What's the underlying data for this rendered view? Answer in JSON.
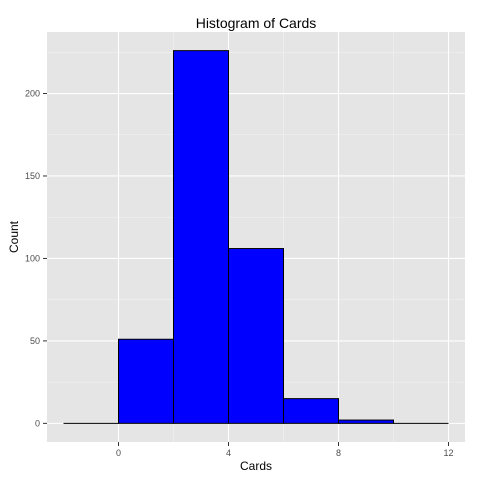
{
  "chart_data": {
    "type": "bar",
    "title": "Histogram of Cards",
    "xlabel": "Cards",
    "ylabel": "Count",
    "bin_width": 2,
    "bins": [
      {
        "x0": -2,
        "x1": 0,
        "value": 0
      },
      {
        "x0": 0,
        "x1": 2,
        "value": 51
      },
      {
        "x0": 2,
        "x1": 4,
        "value": 226
      },
      {
        "x0": 4,
        "x1": 6,
        "value": 106
      },
      {
        "x0": 6,
        "x1": 8,
        "value": 15
      },
      {
        "x0": 8,
        "x1": 10,
        "value": 2
      },
      {
        "x0": 10,
        "x1": 12,
        "value": 0
      }
    ],
    "x_ticks": [
      0,
      4,
      8,
      12
    ],
    "x_tick_labels": [
      "0",
      "4",
      "8",
      "12"
    ],
    "y_ticks": [
      0,
      50,
      100,
      150,
      200
    ],
    "y_tick_labels": [
      "0",
      "50",
      "100",
      "150",
      "200"
    ],
    "xlim": [
      -2.6,
      12.6
    ],
    "ylim": [
      -11.3,
      237.3
    ],
    "grid": true,
    "colors": {
      "bar_fill": "#0000ff",
      "bar_stroke": "#000000",
      "panel_bg": "#e5e5e5",
      "grid_major": "#ffffff",
      "grid_minor": "#f2f2f2"
    }
  }
}
